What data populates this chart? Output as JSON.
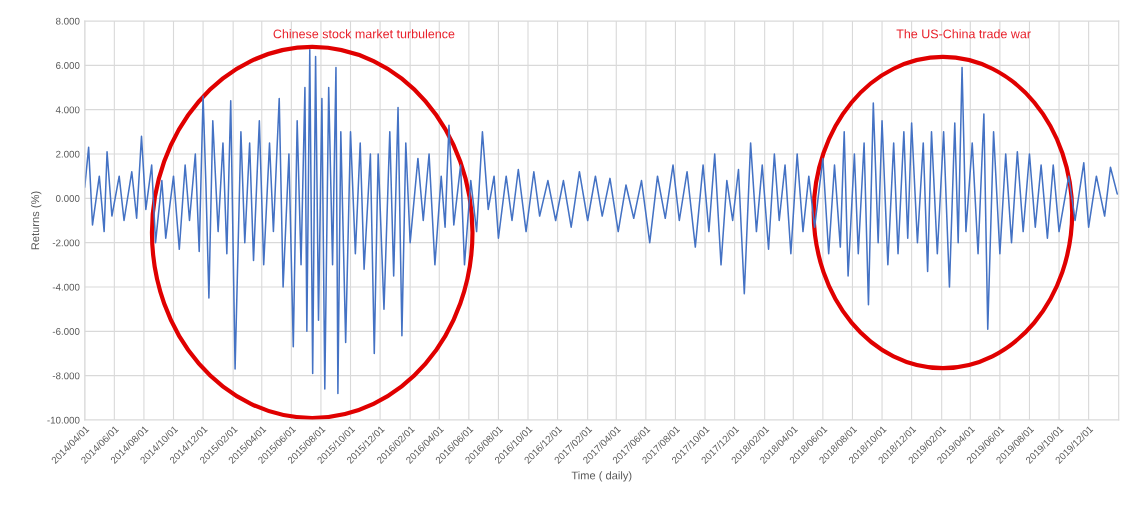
{
  "chart_data": {
    "type": "line",
    "xlabel": "Time ( daily)",
    "ylabel": "Returns (%)",
    "annotations": [
      "Chinese stock market turbulence",
      "The US-China trade war"
    ],
    "x": [
      "2014-04-01",
      "2014-04-09",
      "2014-04-17",
      "2014-05-01",
      "2014-05-11",
      "2014-05-17",
      "2014-05-27",
      "2014-06-11",
      "2014-06-21",
      "2014-07-07",
      "2014-07-17",
      "2014-07-27",
      "2014-08-05",
      "2014-08-17",
      "2014-08-25",
      "2014-09-07",
      "2014-09-15",
      "2014-10-01",
      "2014-10-13",
      "2014-10-25",
      "2014-11-03",
      "2014-11-15",
      "2014-11-23",
      "2014-12-01",
      "2014-12-07",
      "2014-12-13",
      "2014-12-21",
      "2015-01-01",
      "2015-01-11",
      "2015-01-19",
      "2015-01-27",
      "2015-02-05",
      "2015-02-17",
      "2015-02-25",
      "2015-03-07",
      "2015-03-15",
      "2015-03-27",
      "2015-04-05",
      "2015-04-17",
      "2015-04-25",
      "2015-05-07",
      "2015-05-15",
      "2015-05-27",
      "2015-06-05",
      "2015-06-13",
      "2015-06-21",
      "2015-06-29",
      "2015-07-03",
      "2015-07-09",
      "2015-07-15",
      "2015-07-21",
      "2015-07-27",
      "2015-08-03",
      "2015-08-09",
      "2015-08-17",
      "2015-08-25",
      "2015-09-01",
      "2015-09-05",
      "2015-09-11",
      "2015-09-21",
      "2015-10-01",
      "2015-10-11",
      "2015-10-21",
      "2015-10-29",
      "2015-11-11",
      "2015-11-19",
      "2015-11-27",
      "2015-12-09",
      "2015-12-21",
      "2015-12-29",
      "2016-01-07",
      "2016-01-15",
      "2016-01-23",
      "2016-02-01",
      "2016-02-17",
      "2016-02-28",
      "2016-03-11",
      "2016-03-23",
      "2016-04-05",
      "2016-04-13",
      "2016-04-21",
      "2016-05-01",
      "2016-05-15",
      "2016-05-23",
      "2016-06-05",
      "2016-06-17",
      "2016-06-29",
      "2016-07-11",
      "2016-07-23",
      "2016-08-01",
      "2016-08-17",
      "2016-08-29",
      "2016-09-11",
      "2016-09-27",
      "2016-10-13",
      "2016-10-25",
      "2016-11-11",
      "2016-11-27",
      "2016-12-13",
      "2016-12-29",
      "2017-01-15",
      "2017-02-01",
      "2017-02-17",
      "2017-03-03",
      "2017-03-19",
      "2017-04-05",
      "2017-04-21",
      "2017-05-07",
      "2017-05-23",
      "2017-06-09",
      "2017-06-25",
      "2017-07-11",
      "2017-07-27",
      "2017-08-09",
      "2017-08-25",
      "2017-09-11",
      "2017-09-27",
      "2017-10-09",
      "2017-10-21",
      "2017-11-03",
      "2017-11-15",
      "2017-11-27",
      "2017-12-09",
      "2017-12-21",
      "2018-01-03",
      "2018-01-15",
      "2018-01-27",
      "2018-02-09",
      "2018-02-21",
      "2018-03-03",
      "2018-03-15",
      "2018-03-27",
      "2018-04-09",
      "2018-04-21",
      "2018-05-03",
      "2018-05-15",
      "2018-06-01",
      "2018-06-13",
      "2018-06-25",
      "2018-07-07",
      "2018-07-15",
      "2018-07-23",
      "2018-08-05",
      "2018-08-13",
      "2018-08-25",
      "2018-09-03",
      "2018-09-13",
      "2018-09-23",
      "2018-10-01",
      "2018-10-13",
      "2018-10-25",
      "2018-11-03",
      "2018-11-15",
      "2018-11-23",
      "2018-12-01",
      "2018-12-13",
      "2018-12-25",
      "2019-01-03",
      "2019-01-11",
      "2019-01-23",
      "2019-02-05",
      "2019-02-17",
      "2019-02-28",
      "2019-03-07",
      "2019-03-15",
      "2019-03-23",
      "2019-04-05",
      "2019-04-17",
      "2019-04-29",
      "2019-05-07",
      "2019-05-19",
      "2019-06-01",
      "2019-06-13",
      "2019-06-25",
      "2019-07-07",
      "2019-07-19",
      "2019-08-01",
      "2019-08-13",
      "2019-08-25",
      "2019-09-07",
      "2019-09-19",
      "2019-10-01",
      "2019-10-21",
      "2019-11-03",
      "2019-11-21",
      "2019-12-01",
      "2019-12-17",
      "2020-01-03",
      "2020-01-15",
      "2020-01-29"
    ],
    "series": [
      {
        "color": "#4472c4",
        "values": [
          0.5,
          2.3,
          -1.2,
          1.0,
          -1.5,
          2.1,
          -0.8,
          1.0,
          -1.0,
          1.2,
          -0.9,
          2.8,
          -0.5,
          1.5,
          -2.0,
          0.8,
          -1.8,
          1.0,
          -2.3,
          1.5,
          -1.0,
          2.0,
          -2.4,
          4.6,
          0.5,
          -4.5,
          3.5,
          -1.5,
          2.5,
          -2.5,
          4.4,
          -7.7,
          3.0,
          -2.0,
          2.5,
          -2.8,
          3.5,
          -3.0,
          2.5,
          -1.5,
          4.5,
          -4.0,
          2.0,
          -6.7,
          3.5,
          -3.0,
          5.0,
          -6.0,
          6.7,
          -7.9,
          6.4,
          -5.5,
          4.5,
          -8.6,
          5.0,
          -3.0,
          5.9,
          -8.8,
          3.0,
          -6.5,
          3.0,
          -2.5,
          2.5,
          -3.2,
          2.0,
          -7.0,
          2.0,
          -5.0,
          3.0,
          -3.5,
          4.1,
          -6.2,
          2.5,
          -2.0,
          1.8,
          -1.0,
          2.0,
          -3.0,
          1.0,
          -1.3,
          3.3,
          -1.2,
          1.5,
          -3.0,
          0.8,
          -1.5,
          3.0,
          -0.5,
          1.0,
          -1.8,
          1.0,
          -1.0,
          1.3,
          -1.5,
          1.2,
          -0.8,
          0.8,
          -1.0,
          0.8,
          -1.3,
          1.2,
          -1.0,
          1.0,
          -0.8,
          0.9,
          -1.5,
          0.6,
          -0.9,
          0.8,
          -2.0,
          1.0,
          -0.9,
          1.5,
          -1.0,
          1.2,
          -2.2,
          1.5,
          -1.5,
          2.0,
          -3.0,
          0.8,
          -1.0,
          1.3,
          -4.3,
          2.5,
          -1.5,
          1.5,
          -2.3,
          2.0,
          -1.0,
          1.5,
          -2.5,
          2.0,
          -1.5,
          1.0,
          -1.3,
          1.8,
          -2.5,
          1.5,
          -2.2,
          3.0,
          -3.5,
          2.0,
          -2.5,
          2.5,
          -4.8,
          4.3,
          -2.0,
          3.5,
          -3.0,
          2.5,
          -2.5,
          3.0,
          -1.8,
          3.4,
          -2.0,
          2.5,
          -3.3,
          3.0,
          -2.5,
          3.0,
          -4.0,
          3.4,
          -2.0,
          5.9,
          -1.5,
          2.5,
          -2.5,
          3.8,
          -5.9,
          3.0,
          -2.5,
          2.0,
          -2.0,
          2.1,
          -1.5,
          2.0,
          -1.3,
          1.5,
          -1.8,
          1.5,
          -1.5,
          1.0,
          -1.0,
          1.6,
          -1.3,
          1.0,
          -0.8,
          1.4,
          0.2
        ]
      }
    ],
    "xlim": [
      "2014-04-01",
      "2020-02-01"
    ],
    "xticks": [
      {
        "value": "2014-04-01",
        "label": "2014/04/01"
      },
      {
        "value": "2014-06-01",
        "label": "2014/06/01"
      },
      {
        "value": "2014-08-01",
        "label": "2014/08/01"
      },
      {
        "value": "2014-10-01",
        "label": "2014/10/01"
      },
      {
        "value": "2014-12-01",
        "label": "2014/12/01"
      },
      {
        "value": "2015-02-01",
        "label": "2015/02/01"
      },
      {
        "value": "2015-04-01",
        "label": "2015/04/01"
      },
      {
        "value": "2015-06-01",
        "label": "2015/06/01"
      },
      {
        "value": "2015-08-01",
        "label": "2015/08/01"
      },
      {
        "value": "2015-10-01",
        "label": "2015/10/01"
      },
      {
        "value": "2015-12-01",
        "label": "2015/12/01"
      },
      {
        "value": "2016-02-01",
        "label": "2016/02/01"
      },
      {
        "value": "2016-04-01",
        "label": "2016/04/01"
      },
      {
        "value": "2016-06-01",
        "label": "2016/06/01"
      },
      {
        "value": "2016-08-01",
        "label": "2016/08/01"
      },
      {
        "value": "2016-10-01",
        "label": "2016/10/01"
      },
      {
        "value": "2016-12-01",
        "label": "2016/12/01"
      },
      {
        "value": "2017-02-01",
        "label": "2017/02/01"
      },
      {
        "value": "2017-04-01",
        "label": "2017/04/01"
      },
      {
        "value": "2017-06-01",
        "label": "2017/06/01"
      },
      {
        "value": "2017-08-01",
        "label": "2017/08/01"
      },
      {
        "value": "2017-10-01",
        "label": "2017/10/01"
      },
      {
        "value": "2017-12-01",
        "label": "2017/12/01"
      },
      {
        "value": "2018-02-01",
        "label": "2018/02/01"
      },
      {
        "value": "2018-04-01",
        "label": "2018/04/01"
      },
      {
        "value": "2018-06-01",
        "label": "2018/06/01"
      },
      {
        "value": "2018-08-01",
        "label": "2018/08/01"
      },
      {
        "value": "2018-10-01",
        "label": "2018/10/01"
      },
      {
        "value": "2018-12-01",
        "label": "2018/12/01"
      },
      {
        "value": "2019-02-01",
        "label": "2019/02/01"
      },
      {
        "value": "2019-04-01",
        "label": "2019/04/01"
      },
      {
        "value": "2019-06-01",
        "label": "2019/06/01"
      },
      {
        "value": "2019-08-01",
        "label": "2019/08/01"
      },
      {
        "value": "2019-10-01",
        "label": "2019/10/01"
      },
      {
        "value": "2019-12-01",
        "label": "2019/12/01"
      }
    ],
    "ylim": [
      -10,
      8
    ],
    "yticks": [
      {
        "value": -10,
        "label": "-10.000"
      },
      {
        "value": -8,
        "label": "-8.000"
      },
      {
        "value": -6,
        "label": "-6.000"
      },
      {
        "value": -4,
        "label": "-4.000"
      },
      {
        "value": -2,
        "label": "-2.000"
      },
      {
        "value": 0,
        "label": "0.000"
      },
      {
        "value": 2,
        "label": "2.000"
      },
      {
        "value": 4,
        "label": "4.000"
      },
      {
        "value": 6,
        "label": "6.000"
      },
      {
        "value": 8,
        "label": "8.000"
      }
    ],
    "grid": true,
    "legend": false
  }
}
